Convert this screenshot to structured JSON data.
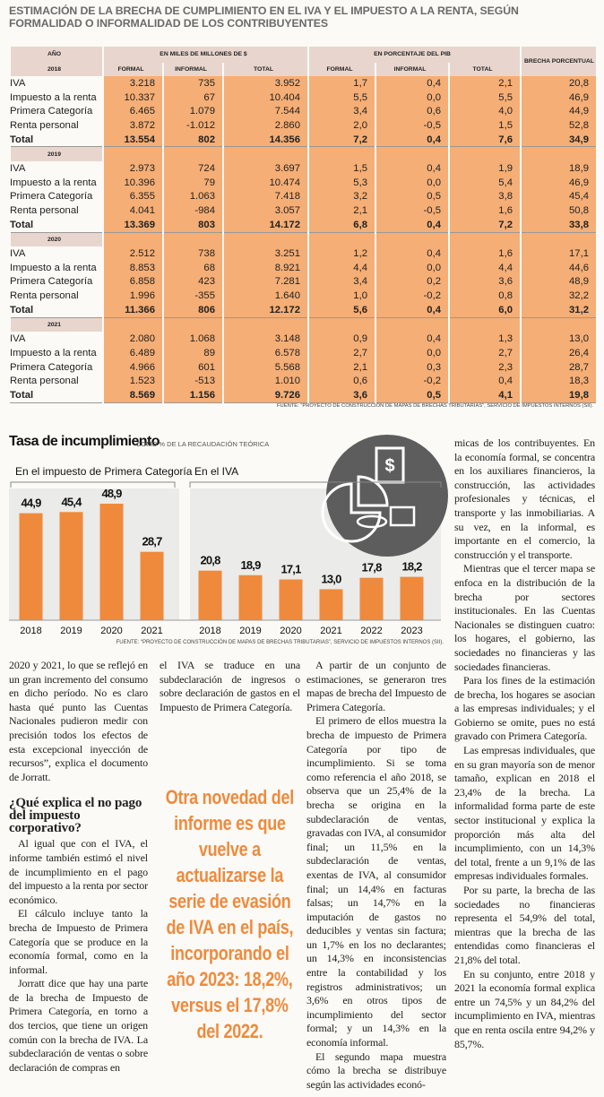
{
  "table": {
    "title": "ESTIMACIÓN DE LA BRECHA DE CUMPLIMIENTO EN EL IVA Y EL IMPUESTO A LA RENTA, SEGÚN FORMALIDAD O INFORMALIDAD DE LOS CONTRIBUYENTES",
    "header": {
      "year": "AÑO",
      "group1": "EN MILES DE MILLONES DE $",
      "group2": "EN PORCENTAJE DEL PIB",
      "gap": "BRECHA PORCENTUAL"
    },
    "columns": [
      "FORMAL",
      "INFORMAL",
      "TOTAL",
      "FORMAL",
      "INFORMAL",
      "TOTAL"
    ],
    "years": [
      {
        "year": "2018",
        "rows": [
          [
            "IVA",
            "3.218",
            "735",
            "3.952",
            "1,7",
            "0,4",
            "2,1",
            "20,8"
          ],
          [
            "Impuesto a la renta",
            "10.337",
            "67",
            "10.404",
            "5,5",
            "0,0",
            "5,5",
            "46,9"
          ],
          [
            "Primera Categoría",
            "6.465",
            "1.079",
            "7.544",
            "3,4",
            "0,6",
            "4,0",
            "44,9"
          ],
          [
            "Renta personal",
            "3.872",
            "-1.012",
            "2.860",
            "2,0",
            "-0,5",
            "1,5",
            "52,8"
          ],
          [
            "Total",
            "13.554",
            "802",
            "14.356",
            "7,2",
            "0,4",
            "7,6",
            "34,9"
          ]
        ]
      },
      {
        "year": "2019",
        "rows": [
          [
            "IVA",
            "2.973",
            "724",
            "3.697",
            "1,5",
            "0,4",
            "1,9",
            "18,9"
          ],
          [
            "Impuesto a la renta",
            "10.396",
            "79",
            "10.474",
            "5,3",
            "0,0",
            "5,4",
            "46,9"
          ],
          [
            "Primera Categoría",
            "6.355",
            "1.063",
            "7.418",
            "3,2",
            "0,5",
            "3,8",
            "45,4"
          ],
          [
            "Renta personal",
            "4.041",
            "-984",
            "3.057",
            "2,1",
            "-0,5",
            "1,6",
            "50,8"
          ],
          [
            "Total",
            "13.369",
            "803",
            "14.172",
            "6,8",
            "0,4",
            "7,2",
            "33,8"
          ]
        ]
      },
      {
        "year": "2020",
        "rows": [
          [
            "IVA",
            "2.512",
            "738",
            "3.251",
            "1,2",
            "0,4",
            "1,6",
            "17,1"
          ],
          [
            "Impuesto a la renta",
            "8.853",
            "68",
            "8.921",
            "4,4",
            "0,0",
            "4,4",
            "44,6"
          ],
          [
            "Primera Categoría",
            "6.858",
            "423",
            "7.281",
            "3,4",
            "0,2",
            "3,6",
            "48,9"
          ],
          [
            "Renta personal",
            "1.996",
            "-355",
            "1.640",
            "1,0",
            "-0,2",
            "0,8",
            "32,2"
          ],
          [
            "Total",
            "11.366",
            "806",
            "12.172",
            "5,6",
            "0,4",
            "6,0",
            "31,2"
          ]
        ]
      },
      {
        "year": "2021",
        "rows": [
          [
            "IVA",
            "2.080",
            "1.068",
            "3.148",
            "0,9",
            "0,4",
            "1,3",
            "13,0"
          ],
          [
            "Impuesto a la renta",
            "6.489",
            "89",
            "6.578",
            "2,7",
            "0,0",
            "2,7",
            "26,4"
          ],
          [
            "Primera Categoría",
            "4.966",
            "601",
            "5.568",
            "2,1",
            "0,3",
            "2,3",
            "28,7"
          ],
          [
            "Renta personal",
            "1.523",
            "-513",
            "1.010",
            "0,6",
            "-0,2",
            "0,4",
            "18,3"
          ],
          [
            "Total",
            "8.569",
            "1.156",
            "9.726",
            "3,6",
            "0,5",
            "4,1",
            "19,8"
          ]
        ]
      }
    ],
    "source": "FUENTE: “PROYECTO DE CONSTRUCCIÓN DE MAPAS DE BRECHAS TRIBUTARIAS”, SERVICIO DE IMPUESTOS INTERNOS (SII)."
  },
  "chart_header": {
    "title": "Tasa de incumplimiento",
    "subtitle": "COMO % DE LA RECAUDACIÓN TEÓRICA",
    "source": "FUENTE: “PROYECTO DE CONSTRUCCIÓN DE MAPAS DE BRECHAS TRIBUTARIAS”, SERVICIO DE IMPUESTOS INTERNOS (SII)."
  },
  "chart_data": [
    {
      "type": "bar",
      "title": "En el impuesto de Primera Categoría",
      "color": "#ef8a3c",
      "categories": [
        "2018",
        "2019",
        "2020",
        "2021"
      ],
      "values": [
        44.9,
        45.4,
        48.9,
        28.7
      ],
      "value_labels": [
        "44,9",
        "45,4",
        "48,9",
        "28,7"
      ]
    },
    {
      "type": "bar",
      "title": "En el IVA",
      "color": "#ef8a3c",
      "categories": [
        "2018",
        "2019",
        "2020",
        "2021",
        "2022",
        "2023"
      ],
      "values": [
        20.8,
        18.9,
        17.1,
        13.0,
        17.8,
        18.2
      ],
      "value_labels": [
        "20,8",
        "18,9",
        "17,1",
        "13,0",
        "17,8",
        "18,2"
      ]
    }
  ],
  "article": {
    "col1": [
      "2020 y 2021, lo que se reflejó en un gran incremento del consumo en dicho período. No es claro hasta qué punto las Cuentas Nacionales pudieron medir con precisión todos los efectos de esta excepcional inyección de recursos”, explica el documento de Jorratt."
    ],
    "heading": "¿Qué explica el no pago del impuesto corporativo?",
    "col1b": [
      "Al igual que con el IVA, el informe también estimó el nivel de incumplimiento en el pago del impuesto a la renta por sector económico.",
      "El cálculo incluye tanto la brecha de Impuesto de Primera Categoría que se produce en la economía formal, como en la informal.",
      "Jorratt dice que hay una parte de la brecha de Impuesto de Primera Categoría, en torno a dos tercios, que tiene un origen común con la brecha de IVA. La subdeclaración de ventas o sobre declaración de compras en"
    ],
    "col2": [
      "el IVA se traduce en una subdeclaración de ingresos o sobre declaración de gastos en el Impuesto de Primera Categoría."
    ],
    "pullquote": "Otra novedad del informe es que vuelve a actualizarse la serie de evasión de IVA en el país, incorporando el año 2023: 18,2%, versus el 17,8% del 2022.",
    "col3": [
      "A partir de un conjunto de estimaciones, se generaron tres mapas de brecha del Impuesto de Primera Categoría.",
      "El primero de ellos muestra la brecha de impuesto de Primera Categoría por tipo de incumplimiento. Si se toma como referencia el año 2018, se observa que un 25,4% de la brecha se origina en la subdeclaración de ventas, gravadas con IVA, al consumidor final; un 11,5% en la subdeclaración de ventas, exentas de IVA, al consumidor final; un 14,4% en facturas falsas; un 14,7% en la imputación de gastos no deducibles y ventas sin factura; un 1,7% en los no declarantes; un 14,3% en inconsistencias entre la contabilidad y los registros administrativos; un 3,6% en otros tipos de incumplimiento del sector formal; y un 14,3% en la economía informal.",
      "El segundo mapa muestra cómo la brecha se distribuye según las actividades econó-"
    ],
    "col4": [
      "micas de los contribuyentes. En la economía formal, se concentra en los auxiliares financieros, la construcción, las actividades profesionales y técnicas, el transporte y las inmobiliarias. A su vez, en la informal, es importante en el comercio, la construcción y el transporte.",
      "Mientras que el tercer mapa se enfoca en la distribución de la brecha por sectores institucionales. En las Cuentas Nacionales se distinguen cuatro: los hogares, el gobierno, las sociedades no financieras y las sociedades financieras.",
      "Para los fines de la estimación de brecha, los hogares se asocian a las empresas individuales; y el Gobierno se omite, pues no está gravado con Primera Categoría.",
      "Las empresas individuales, que en su gran mayoría son de menor tamaño, explican en 2018 el 23,4% de la brecha. La informalidad forma parte de este sector institucional y explica la proporción más alta del incumplimiento, con un 14,3% del total, frente a un 9,1% de las empresas individuales formales.",
      "Por su parte, la brecha de las sociedades no financieras representa el 54,9% del total, mientras que la brecha de las entendidas como financieras el 21,8% del total.",
      "En su conjunto, entre 2018 y 2021 la economía formal explica entre un 74,5% y un 84,2% del incumplimiento en IVA, mientras que en renta oscila entre 94,2% y 85,7%."
    ]
  }
}
